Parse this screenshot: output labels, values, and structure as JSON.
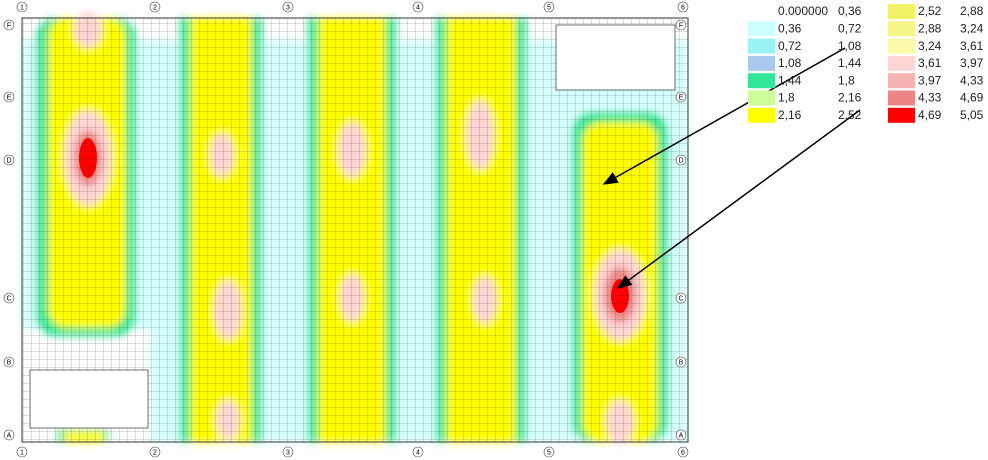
{
  "axes": {
    "columns": [
      "1",
      "2",
      "3",
      "4",
      "5",
      "6"
    ],
    "rows": [
      "F",
      "E",
      "D",
      "C",
      "B",
      "A"
    ]
  },
  "legend": {
    "items": [
      {
        "from": "0.000000",
        "to": "0,36",
        "color": "#ffffff"
      },
      {
        "from": "0,36",
        "to": "0,72",
        "color": "#ccffff"
      },
      {
        "from": "0,72",
        "to": "1,08",
        "color": "#99f3f3"
      },
      {
        "from": "1,08",
        "to": "1,44",
        "color": "#a9c9ef"
      },
      {
        "from": "1,44",
        "to": "1,8",
        "color": "#33e69a"
      },
      {
        "from": "1,8",
        "to": "2,16",
        "color": "#ccff99"
      },
      {
        "from": "2,16",
        "to": "2,52",
        "color": "#ffff00"
      },
      {
        "from": "2,52",
        "to": "2,88",
        "color": "#f2f266"
      },
      {
        "from": "2,88",
        "to": "3,24",
        "color": "#f5f588"
      },
      {
        "from": "3,24",
        "to": "3,61",
        "color": "#fafaaa"
      },
      {
        "from": "3,61",
        "to": "3,97",
        "color": "#ffd6d6"
      },
      {
        "from": "3,97",
        "to": "4,33",
        "color": "#f5b3b3"
      },
      {
        "from": "4,33",
        "to": "4,69",
        "color": "#ee8585"
      },
      {
        "from": "4,69",
        "to": "5,05",
        "color": "#ff0000"
      }
    ]
  }
}
